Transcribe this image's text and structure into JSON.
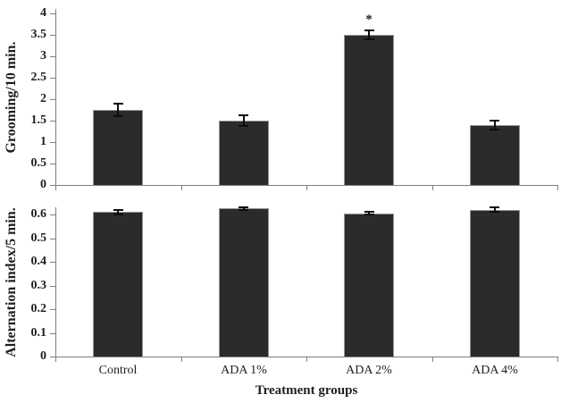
{
  "figure": {
    "background": "#ffffff"
  },
  "chart_data": [
    {
      "type": "bar",
      "panel": "top",
      "title": "",
      "ylabel": "Grooming/10 min.",
      "xlabel": "",
      "categories": [
        "Control",
        "ADA 1%",
        "ADA 2%",
        "ADA 4%"
      ],
      "values": [
        1.75,
        1.5,
        3.5,
        1.4
      ],
      "errors": [
        0.15,
        0.13,
        0.1,
        0.1
      ],
      "annotations": [
        {
          "category_index": 2,
          "text": "*"
        }
      ],
      "ylim": [
        0,
        4
      ],
      "yticks": [
        0,
        0.5,
        1,
        1.5,
        2,
        2.5,
        3,
        3.5,
        4
      ],
      "ytick_labels": [
        "0",
        "0.5",
        "1",
        "1.5",
        "2",
        "2.5",
        "3",
        "3.5",
        "4"
      ],
      "grid": false,
      "legend": false,
      "show_category_labels": false
    },
    {
      "type": "bar",
      "panel": "bottom",
      "title": "",
      "ylabel": "Alternation index/5 min.",
      "xlabel": "Treatment groups",
      "categories": [
        "Control",
        "ADA 1%",
        "ADA 2%",
        "ADA 4%"
      ],
      "values": [
        0.61,
        0.625,
        0.605,
        0.62
      ],
      "errors": [
        0.01,
        0.006,
        0.006,
        0.01
      ],
      "annotations": [],
      "ylim": [
        0,
        0.63
      ],
      "yticks": [
        0,
        0.1,
        0.2,
        0.3,
        0.4,
        0.5,
        0.6
      ],
      "ytick_labels": [
        "0",
        "0.1",
        "0.2",
        "0.3",
        "0.4",
        "0.5",
        "0.6"
      ],
      "grid": false,
      "legend": false,
      "show_category_labels": true
    }
  ],
  "colors": {
    "bar": "#2b2b2b",
    "bar_border": "#949494",
    "axis": "#7f7f7f",
    "error": "#0d0d0d",
    "text": "#1f1f1f",
    "background": "#ffffff"
  }
}
